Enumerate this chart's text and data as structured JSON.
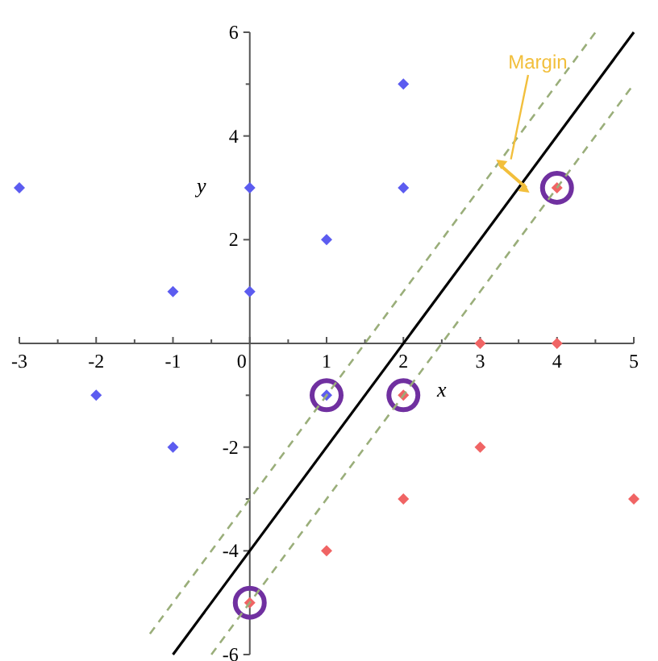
{
  "chart_data": {
    "type": "scatter",
    "xlabel": "x",
    "ylabel": "y",
    "xlim": [
      -3,
      5
    ],
    "ylim": [
      -6,
      6
    ],
    "xticks": [
      -3,
      {
        "value": -2.5,
        "label": null
      },
      -2,
      {
        "value": -1.5,
        "label": null
      },
      -1,
      {
        "value": -0.5,
        "label": null
      },
      0,
      {
        "value": 0.5,
        "label": null
      },
      1,
      {
        "value": 1.5,
        "label": null
      },
      2,
      {
        "value": 2.5,
        "label": null
      },
      3,
      {
        "value": 3.5,
        "label": null
      },
      4,
      {
        "value": 4.5,
        "label": null
      },
      5
    ],
    "yticks": [
      -6,
      {
        "value": -5,
        "label": null
      },
      -4,
      {
        "value": -3,
        "label": null
      },
      -2,
      {
        "value": -1,
        "label": null
      },
      {
        "value": 1,
        "label": null
      },
      2,
      {
        "value": 3,
        "label": null
      },
      4,
      {
        "value": 5,
        "label": null
      },
      6
    ],
    "grid": false,
    "annotations": [
      "Margin"
    ],
    "series": [
      {
        "marker": "diamond",
        "color": "#5c5cf0",
        "x": [
          -3,
          -2,
          -1,
          -1,
          0,
          0,
          1,
          1,
          2,
          2
        ],
        "values": [
          3,
          -1,
          1,
          -2,
          3,
          1,
          2,
          -1,
          5,
          3
        ]
      },
      {
        "marker": "diamond",
        "color": "#f06464",
        "x": [
          3,
          4,
          2,
          3,
          2,
          5,
          1,
          0,
          4
        ],
        "values": [
          0,
          0,
          -1,
          -2,
          -3,
          -3,
          -4,
          -5,
          3
        ]
      },
      {
        "marker": "circle",
        "color": "#7030a0",
        "x": [
          1,
          2,
          4,
          0
        ],
        "values": [
          -1,
          -1,
          3,
          -5
        ]
      },
      {
        "type": "line",
        "line_style": "solid",
        "color": "#000000",
        "x": [
          -1,
          5
        ],
        "values": [
          -6,
          6
        ]
      },
      {
        "type": "line",
        "line_style": "dashed",
        "color": "#9aae7a",
        "x": [
          -1.3,
          4.5
        ],
        "values": [
          -5.6,
          6
        ]
      },
      {
        "type": "line",
        "line_style": "dashed",
        "color": "#9aae7a",
        "x": [
          -0.5,
          5
        ],
        "values": [
          -6,
          5
        ]
      }
    ]
  }
}
